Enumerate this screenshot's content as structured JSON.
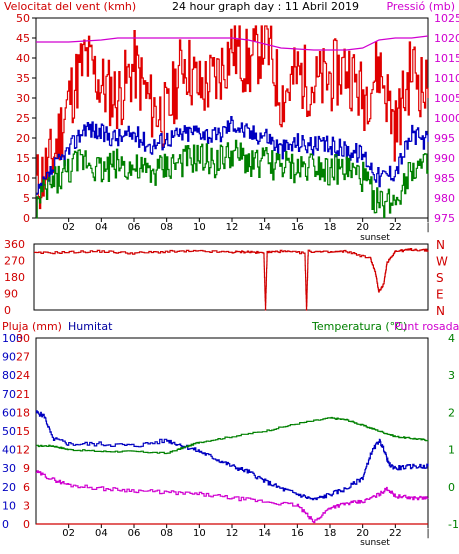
{
  "header": {
    "wind_label": "Velocitat del vent (kmh)",
    "title": "24 hour graph day : 11 Abril 2019",
    "pressure_label": "Pressió (mb)"
  },
  "colors": {
    "axis": "#000000",
    "wind": "#d00000",
    "gust": "#e00000",
    "avg_wind": "#0000c0",
    "min_wind": "#008000",
    "pressure": "#d000d0",
    "direction": "#d00000",
    "rain": "#d00000",
    "humidity": "#0000c0",
    "temperature": "#008000",
    "dewpoint": "#d000d0",
    "rain_label": "#d00000",
    "humidity_label": "#0000a0",
    "temp_label": "#008000",
    "dew_label": "#d000d0"
  },
  "chart_data": [
    {
      "id": "wind",
      "type": "line",
      "xlabel": "",
      "x_ticks": [
        "02",
        "04",
        "06",
        "08",
        "10",
        "12",
        "14",
        "16",
        "18",
        "20",
        "22",
        "|"
      ],
      "sunset_label": "sunset",
      "y_left_ticks": [
        "0",
        "5",
        "10",
        "15",
        "20",
        "25",
        "30",
        "35",
        "40",
        "45",
        "50"
      ],
      "y_left_range": [
        0,
        50
      ],
      "y_right_ticks": [
        "975",
        "980",
        "985",
        "990",
        "995",
        "1000",
        "1005",
        "1010",
        "1015",
        "1020",
        "1025"
      ],
      "y_right_range": [
        975,
        1025
      ],
      "series": [
        {
          "key": "gust",
          "x": [
            0,
            1,
            2,
            3,
            4,
            5,
            6,
            7,
            8,
            9,
            10,
            11,
            12,
            13,
            14,
            15,
            16,
            17,
            18,
            19,
            20,
            21,
            22,
            23,
            24
          ],
          "values": [
            8,
            15,
            30,
            40,
            33,
            30,
            38,
            28,
            25,
            40,
            32,
            35,
            43,
            38,
            45,
            30,
            36,
            33,
            35,
            38,
            30,
            38,
            22,
            38,
            30
          ]
        },
        {
          "key": "avg_wind",
          "x": [
            0,
            1,
            2,
            3,
            4,
            5,
            6,
            7,
            8,
            9,
            10,
            11,
            12,
            13,
            14,
            15,
            16,
            17,
            18,
            19,
            20,
            21,
            22,
            23,
            24
          ],
          "values": [
            5,
            12,
            17,
            23,
            21,
            20,
            21,
            18,
            20,
            21,
            22,
            20,
            24,
            21,
            21,
            17,
            19,
            18,
            18,
            17,
            16,
            10,
            12,
            21,
            19
          ]
        },
        {
          "key": "min_wind",
          "x": [
            0,
            1,
            2,
            3,
            4,
            5,
            6,
            7,
            8,
            9,
            10,
            11,
            12,
            13,
            14,
            15,
            16,
            17,
            18,
            19,
            20,
            21,
            22,
            23,
            24
          ],
          "values": [
            3,
            9,
            12,
            15,
            12,
            14,
            12,
            11,
            13,
            14,
            15,
            14,
            16,
            14,
            14,
            13,
            12,
            14,
            12,
            12,
            10,
            3,
            5,
            13,
            12
          ]
        },
        {
          "key": "pressure",
          "axis": "right",
          "x": [
            0,
            2,
            4,
            5,
            6,
            8,
            10,
            12,
            13,
            15,
            17,
            19,
            20,
            21,
            22,
            23,
            24
          ],
          "values": [
            1019,
            1019,
            1019.5,
            1020,
            1020,
            1020,
            1020,
            1020,
            1019.5,
            1017.5,
            1017,
            1017,
            1017.5,
            1019.5,
            1020,
            1020,
            1020.5
          ]
        }
      ]
    },
    {
      "id": "direction",
      "type": "line",
      "y_left_ticks": [
        "360",
        "270",
        "180",
        "90",
        "0"
      ],
      "y_range": [
        0,
        360
      ],
      "y_right_labels": [
        "N",
        "W",
        "S",
        "E",
        "N"
      ],
      "series": [
        {
          "key": "direction",
          "x": [
            0,
            2,
            4,
            6,
            8,
            10,
            12,
            13,
            14,
            14.1,
            14.2,
            15,
            16.5,
            16.6,
            16.7,
            18,
            19,
            20.5,
            20.8,
            21,
            21.3,
            21.5,
            22,
            23,
            24
          ],
          "values": [
            310,
            315,
            320,
            310,
            318,
            320,
            315,
            318,
            310,
            0,
            315,
            320,
            310,
            0,
            320,
            315,
            320,
            280,
            200,
            100,
            140,
            260,
            320,
            330,
            325
          ]
        }
      ]
    },
    {
      "id": "rain_humidity_temp",
      "type": "line",
      "labels": {
        "rain": "Pluja (mm)",
        "humidity": "Humitat",
        "temperature": "Temperatura (°C)",
        "dewpoint": "Punt rosada"
      },
      "x_ticks": [
        "02",
        "04",
        "06",
        "08",
        "10",
        "12",
        "14",
        "16",
        "18",
        "20",
        "22",
        "|"
      ],
      "sunset_label": "sunset",
      "humidity_ticks": [
        "0",
        "10",
        "20",
        "30",
        "40",
        "50",
        "60",
        "70",
        "80",
        "90",
        "100"
      ],
      "humidity_range": [
        0,
        100
      ],
      "rain_ticks": [
        "0",
        "3",
        "6",
        "9",
        "12",
        "15",
        "18",
        "21",
        "24",
        "27",
        "30"
      ],
      "rain_range": [
        0,
        30
      ],
      "temp_ticks": [
        "-1",
        "0",
        "1",
        "2",
        "3",
        "4"
      ],
      "temp_range": [
        -1,
        4
      ],
      "series": [
        {
          "key": "humidity",
          "axis": "humidity",
          "x": [
            0,
            0.5,
            1,
            2,
            4,
            6,
            8,
            9,
            10,
            11,
            12,
            13,
            14,
            15,
            16,
            17,
            18,
            19,
            20,
            20.5,
            21,
            21.3,
            21.6,
            22,
            23,
            24
          ],
          "values": [
            60,
            58,
            46,
            43,
            43,
            42,
            45,
            42,
            39,
            35,
            31,
            28,
            23,
            19,
            16,
            13,
            16,
            19,
            25,
            38,
            45,
            40,
            32,
            30,
            31,
            31
          ]
        },
        {
          "key": "temperature",
          "axis": "temp",
          "x": [
            0,
            1,
            2,
            4,
            6,
            8,
            9,
            10,
            12,
            14,
            16,
            18,
            19,
            20,
            21,
            22,
            23,
            24
          ],
          "values": [
            1.1,
            1.1,
            1.0,
            0.95,
            0.95,
            0.9,
            1.05,
            1.2,
            1.35,
            1.5,
            1.7,
            1.85,
            1.8,
            1.65,
            1.5,
            1.35,
            1.3,
            1.25
          ]
        },
        {
          "key": "dewpoint",
          "axis": "temp",
          "x": [
            0,
            1,
            2,
            4,
            6,
            8,
            10,
            12,
            14,
            16,
            17,
            18,
            19,
            20,
            21,
            21.5,
            22,
            23,
            24
          ],
          "values": [
            0.4,
            0.2,
            0.05,
            -0.05,
            -0.1,
            -0.15,
            -0.2,
            -0.3,
            -0.4,
            -0.5,
            -0.95,
            -0.55,
            -0.45,
            -0.4,
            -0.2,
            -0.05,
            -0.25,
            -0.3,
            -0.3
          ]
        },
        {
          "key": "rain",
          "axis": "rain",
          "x": [
            0,
            24
          ],
          "values": [
            0,
            0
          ]
        }
      ]
    }
  ]
}
